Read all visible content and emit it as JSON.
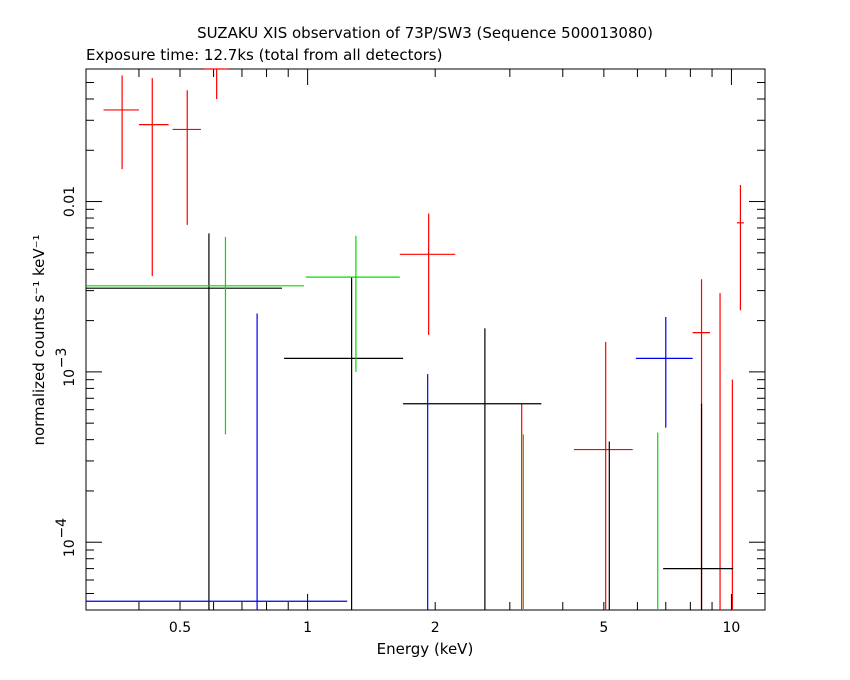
{
  "chart_data": {
    "type": "scatter",
    "title": "SUZAKU XIS observation of 73P/SW3 (Sequence 500013080)",
    "subtitle": "Exposure time: 12.7ks (total from all detectors)",
    "xlabel": "Energy (keV)",
    "ylabel": "normalized counts s⁻¹ keV⁻¹",
    "x_scale": "log",
    "y_scale": "log",
    "xlim": [
      0.3,
      12
    ],
    "ylim": [
      4e-05,
      0.06
    ],
    "x_ticks": [
      {
        "value": 0.5,
        "label": "0.5"
      },
      {
        "value": 1,
        "label": "1"
      },
      {
        "value": 2,
        "label": "2"
      },
      {
        "value": 5,
        "label": "5"
      },
      {
        "value": 10,
        "label": "10"
      }
    ],
    "y_ticks": [
      {
        "value": 0.0001,
        "base": "10",
        "exp": "−4"
      },
      {
        "value": 0.001,
        "base": "10",
        "exp": "−3"
      },
      {
        "value": 0.01,
        "base": "0.01",
        "exp": ""
      }
    ],
    "series": [
      {
        "color": "#ff0000",
        "points": [
          {
            "x": 0.365,
            "y": 0.0345,
            "xlo": 0.33,
            "xhi": 0.4,
            "ylo": 0.0155,
            "yhi": 0.055
          },
          {
            "x": 0.43,
            "y": 0.0283,
            "xlo": 0.4,
            "xhi": 0.47,
            "ylo": 0.00365,
            "yhi": 0.053
          },
          {
            "x": 0.52,
            "y": 0.0265,
            "xlo": 0.48,
            "xhi": 0.56,
            "ylo": 0.0073,
            "yhi": 0.045
          },
          {
            "x": 0.61,
            "y": 0.06,
            "xlo": 0.57,
            "xhi": 0.65,
            "ylo": 0.04,
            "yhi": 0.06
          },
          {
            "x": 1.93,
            "y": 0.0049,
            "xlo": 1.65,
            "xhi": 2.23,
            "ylo": 0.00165,
            "yhi": 0.0085
          },
          {
            "x": 3.2,
            "y": 0.00065,
            "xlo": 3.2,
            "xhi": 3.2,
            "ylo": 4e-05,
            "yhi": 0.00065
          },
          {
            "x": 5.05,
            "y": 0.00035,
            "xlo": 4.25,
            "xhi": 5.85,
            "ylo": 4e-05,
            "yhi": 0.0015
          },
          {
            "x": 8.5,
            "y": 0.0017,
            "xlo": 8.1,
            "xhi": 8.9,
            "ylo": 4e-05,
            "yhi": 0.0035
          },
          {
            "x": 9.4,
            "y": 4e-05,
            "xlo": 9.4,
            "xhi": 9.4,
            "ylo": 4e-05,
            "yhi": 0.0029
          },
          {
            "x": 10.05,
            "y": 4e-05,
            "xlo": 10.05,
            "xhi": 10.05,
            "ylo": 4e-05,
            "yhi": 0.0009
          },
          {
            "x": 10.5,
            "y": 0.0075,
            "xlo": 10.3,
            "xhi": 10.7,
            "ylo": 0.0023,
            "yhi": 0.0125
          }
        ]
      },
      {
        "color": "#000000",
        "points": [
          {
            "x": 0.585,
            "y": 0.0031,
            "xlo": 0.3,
            "xhi": 0.87,
            "ylo": 4e-05,
            "yhi": 0.0065
          },
          {
            "x": 1.27,
            "y": 0.0012,
            "xlo": 0.88,
            "xhi": 1.68,
            "ylo": 4e-05,
            "yhi": 0.0036
          },
          {
            "x": 2.62,
            "y": 0.00065,
            "xlo": 1.68,
            "xhi": 3.56,
            "ylo": 4e-05,
            "yhi": 0.0018
          },
          {
            "x": 5.15,
            "y": 4e-05,
            "xlo": 5.15,
            "xhi": 5.15,
            "ylo": 4e-05,
            "yhi": 0.00039
          },
          {
            "x": 8.5,
            "y": 7e-05,
            "xlo": 6.9,
            "xhi": 10.1,
            "ylo": 4e-05,
            "yhi": 0.00065
          }
        ]
      },
      {
        "color": "#00dd00",
        "points": [
          {
            "x": 0.64,
            "y": 0.0032,
            "xlo": 0.3,
            "xhi": 0.98,
            "ylo": 0.00043,
            "yhi": 0.0062
          },
          {
            "x": 1.3,
            "y": 0.0036,
            "xlo": 0.99,
            "xhi": 1.65,
            "ylo": 0.001,
            "yhi": 0.0063
          },
          {
            "x": 3.23,
            "y": 4e-05,
            "xlo": 3.23,
            "xhi": 3.23,
            "ylo": 4e-05,
            "yhi": 0.00043
          },
          {
            "x": 6.7,
            "y": 4e-05,
            "xlo": 6.7,
            "xhi": 6.7,
            "ylo": 4e-05,
            "yhi": 0.00044
          }
        ]
      },
      {
        "color": "#0000ee",
        "points": [
          {
            "x": 0.76,
            "y": 4.5e-05,
            "xlo": 0.3,
            "xhi": 1.24,
            "ylo": 4e-05,
            "yhi": 0.0022
          },
          {
            "x": 1.92,
            "y": 4e-05,
            "xlo": 1.92,
            "xhi": 1.92,
            "ylo": 4e-05,
            "yhi": 0.00097
          },
          {
            "x": 7.0,
            "y": 0.0012,
            "xlo": 5.95,
            "xhi": 8.1,
            "ylo": 0.00047,
            "yhi": 0.0021
          }
        ]
      }
    ]
  }
}
